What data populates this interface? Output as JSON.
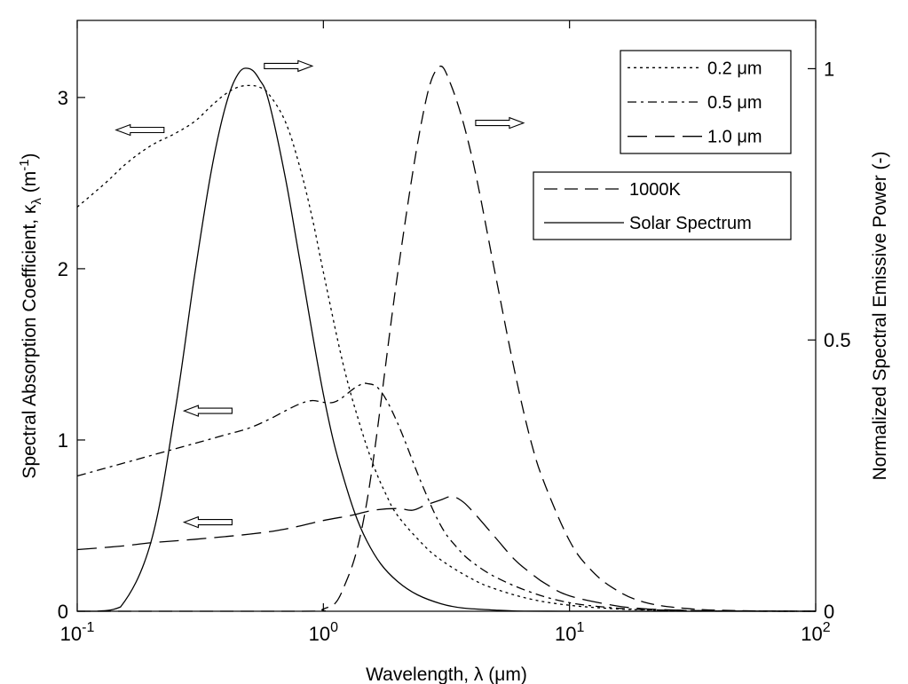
{
  "chart_data": {
    "type": "line",
    "x_scale": "log",
    "xlabel": "Wavelength, λ (μm)",
    "ylabel_left": "Spectral Absorption Coefficient, κλ (m⁻¹)",
    "ylabel_left_parts": {
      "main": "Spectral Absorption Coefficient, κ",
      "sub": "λ",
      "open": " (m",
      "sup": "-1",
      "close": ")"
    },
    "ylabel_right": "Normalized Spectral Emissive Power (-)",
    "xlim": [
      0.1,
      100
    ],
    "ylim_left": [
      0,
      3.45
    ],
    "ylim_right": [
      0,
      1.089
    ],
    "x_ticks": [
      {
        "value": 0.1,
        "base": "10",
        "exp": "-1"
      },
      {
        "value": 1,
        "base": "10",
        "exp": "0"
      },
      {
        "value": 10,
        "base": "10",
        "exp": "1"
      },
      {
        "value": 100,
        "base": "10",
        "exp": "2"
      }
    ],
    "y_ticks_left": [
      {
        "value": 0,
        "label": "0"
      },
      {
        "value": 1,
        "label": "1"
      },
      {
        "value": 2,
        "label": "2"
      },
      {
        "value": 3,
        "label": "3"
      }
    ],
    "y_ticks_right": [
      {
        "value": 0,
        "label": "0"
      },
      {
        "value": 0.5,
        "label": "0.5"
      },
      {
        "value": 1,
        "label": "1"
      }
    ],
    "grid": false,
    "legend_absorption": {
      "placement": "top-right",
      "entries": [
        {
          "label": "0.2 μm",
          "series": "0.2 μm"
        },
        {
          "label": "0.5 μm",
          "series": "0.5 μm"
        },
        {
          "label": "1.0 μm",
          "series": "1.0 μm"
        }
      ]
    },
    "legend_emission": {
      "placement": "top-right",
      "entries": [
        {
          "label": "1000K",
          "series": "1000K"
        },
        {
          "label": "Solar Spectrum",
          "series": "Solar Spectrum"
        }
      ]
    },
    "series": [
      {
        "name": "0.2 μm",
        "axis": "left",
        "dash": "dotted",
        "points": [
          [
            0.1,
            2.36
          ],
          [
            0.13,
            2.5
          ],
          [
            0.16,
            2.62
          ],
          [
            0.2,
            2.72
          ],
          [
            0.25,
            2.79
          ],
          [
            0.3,
            2.86
          ],
          [
            0.35,
            2.95
          ],
          [
            0.4,
            3.02
          ],
          [
            0.45,
            3.06
          ],
          [
            0.5,
            3.07
          ],
          [
            0.55,
            3.06
          ],
          [
            0.6,
            3.02
          ],
          [
            0.7,
            2.86
          ],
          [
            0.8,
            2.6
          ],
          [
            0.9,
            2.3
          ],
          [
            1.0,
            1.98
          ],
          [
            1.2,
            1.45
          ],
          [
            1.4,
            1.1
          ],
          [
            1.6,
            0.85
          ],
          [
            1.8,
            0.68
          ],
          [
            2.0,
            0.56
          ],
          [
            2.5,
            0.4
          ],
          [
            3.0,
            0.3
          ],
          [
            4.0,
            0.19
          ],
          [
            5.0,
            0.13
          ],
          [
            7.0,
            0.07
          ],
          [
            10,
            0.035
          ],
          [
            15,
            0.015
          ],
          [
            20,
            0.008
          ],
          [
            30,
            0.003
          ],
          [
            50,
            0.001
          ],
          [
            100,
            0
          ]
        ]
      },
      {
        "name": "0.5 μm",
        "axis": "left",
        "dash": "dashdot",
        "points": [
          [
            0.1,
            0.79
          ],
          [
            0.15,
            0.86
          ],
          [
            0.2,
            0.91
          ],
          [
            0.3,
            0.98
          ],
          [
            0.4,
            1.03
          ],
          [
            0.5,
            1.07
          ],
          [
            0.6,
            1.12
          ],
          [
            0.7,
            1.17
          ],
          [
            0.8,
            1.21
          ],
          [
            0.9,
            1.23
          ],
          [
            1.0,
            1.22
          ],
          [
            1.1,
            1.22
          ],
          [
            1.2,
            1.25
          ],
          [
            1.3,
            1.29
          ],
          [
            1.4,
            1.32
          ],
          [
            1.5,
            1.33
          ],
          [
            1.7,
            1.29
          ],
          [
            2.0,
            1.1
          ],
          [
            2.5,
            0.75
          ],
          [
            3.0,
            0.5
          ],
          [
            3.5,
            0.37
          ],
          [
            4.0,
            0.29
          ],
          [
            5.0,
            0.2
          ],
          [
            7.0,
            0.11
          ],
          [
            10,
            0.05
          ],
          [
            15,
            0.02
          ],
          [
            20,
            0.01
          ],
          [
            30,
            0.004
          ],
          [
            50,
            0.001
          ],
          [
            100,
            0
          ]
        ]
      },
      {
        "name": "1.0 μm",
        "axis": "left",
        "dash": "longdash",
        "points": [
          [
            0.1,
            0.36
          ],
          [
            0.15,
            0.38
          ],
          [
            0.2,
            0.4
          ],
          [
            0.3,
            0.42
          ],
          [
            0.5,
            0.45
          ],
          [
            0.7,
            0.48
          ],
          [
            1.0,
            0.53
          ],
          [
            1.3,
            0.56
          ],
          [
            1.6,
            0.59
          ],
          [
            2.0,
            0.6
          ],
          [
            2.3,
            0.59
          ],
          [
            2.6,
            0.62
          ],
          [
            3.0,
            0.65
          ],
          [
            3.3,
            0.67
          ],
          [
            3.6,
            0.65
          ],
          [
            4.0,
            0.59
          ],
          [
            5.0,
            0.43
          ],
          [
            6.0,
            0.3
          ],
          [
            7.0,
            0.22
          ],
          [
            8.0,
            0.16
          ],
          [
            10,
            0.09
          ],
          [
            15,
            0.035
          ],
          [
            20,
            0.015
          ],
          [
            30,
            0.005
          ],
          [
            50,
            0.001
          ],
          [
            100,
            0
          ]
        ]
      },
      {
        "name": "1000K",
        "axis": "right",
        "dash": "dashed",
        "points": [
          [
            0.1,
            0
          ],
          [
            0.8,
            0
          ],
          [
            1.0,
            0.004
          ],
          [
            1.2,
            0.04
          ],
          [
            1.5,
            0.2
          ],
          [
            2.0,
            0.62
          ],
          [
            2.5,
            0.9
          ],
          [
            2.9,
            1.0
          ],
          [
            3.3,
            0.97
          ],
          [
            4.0,
            0.84
          ],
          [
            5.0,
            0.62
          ],
          [
            6.0,
            0.44
          ],
          [
            7.0,
            0.31
          ],
          [
            8.0,
            0.23
          ],
          [
            10,
            0.13
          ],
          [
            12,
            0.08
          ],
          [
            15,
            0.043
          ],
          [
            20,
            0.017
          ],
          [
            30,
            0.005
          ],
          [
            50,
            0.001
          ],
          [
            100,
            0
          ]
        ]
      },
      {
        "name": "Solar Spectrum",
        "axis": "right",
        "dash": "solid",
        "points": [
          [
            0.1,
            0
          ],
          [
            0.12,
            0
          ],
          [
            0.15,
            0.008
          ],
          [
            0.2,
            0.13
          ],
          [
            0.25,
            0.37
          ],
          [
            0.3,
            0.62
          ],
          [
            0.35,
            0.81
          ],
          [
            0.4,
            0.93
          ],
          [
            0.45,
            0.99
          ],
          [
            0.5,
            1.0
          ],
          [
            0.55,
            0.98
          ],
          [
            0.6,
            0.94
          ],
          [
            0.7,
            0.8
          ],
          [
            0.8,
            0.65
          ],
          [
            1.0,
            0.4
          ],
          [
            1.2,
            0.25
          ],
          [
            1.5,
            0.13
          ],
          [
            2.0,
            0.055
          ],
          [
            3.0,
            0.014
          ],
          [
            5.0,
            0.002
          ],
          [
            10,
            0
          ],
          [
            100,
            0
          ]
        ]
      }
    ],
    "annotation_arrows": [
      {
        "series": "0.2 μm",
        "direction": "left",
        "x": 0.18,
        "y": 2.81,
        "axis": "left"
      },
      {
        "series": "Solar Spectrum",
        "direction": "right",
        "x": 0.72,
        "y": 1.005,
        "axis": "right"
      },
      {
        "series": "1000K",
        "direction": "right",
        "x": 5.2,
        "y": 0.9,
        "axis": "right"
      },
      {
        "series": "0.5 μm",
        "direction": "left",
        "x": 0.34,
        "y": 1.17,
        "axis": "left"
      },
      {
        "series": "1.0 μm",
        "direction": "left",
        "x": 0.34,
        "y": 0.52,
        "axis": "left"
      }
    ]
  }
}
